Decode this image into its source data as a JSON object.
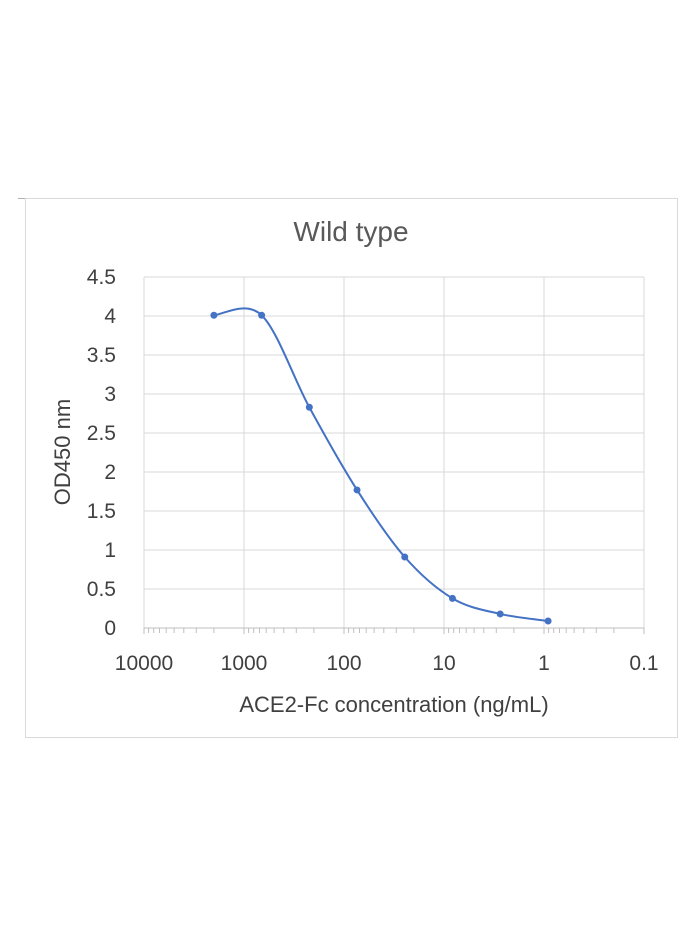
{
  "chart_data": {
    "type": "scatter",
    "title": "Wild type",
    "xlabel": "ACE2-Fc concentration (ng/mL)",
    "ylabel": "OD450 nm",
    "x_scale": "log",
    "x_reversed": true,
    "xlim": [
      10000,
      0.1
    ],
    "ylim": [
      0,
      4.5
    ],
    "x_ticks": [
      "10000",
      "1000",
      "100",
      "10",
      "1",
      "0.1"
    ],
    "y_ticks": [
      "0",
      "0.5",
      "1",
      "1.5",
      "2",
      "2.5",
      "3",
      "3.5",
      "4",
      "4.5"
    ],
    "grid": true,
    "legend": "none",
    "smoothed_line": true,
    "series": [
      {
        "color": "#4472c4",
        "x": [
          2000,
          666.7,
          222.2,
          74.07,
          24.69,
          8.23,
          2.74,
          0.91
        ],
        "y": [
          4.01,
          4.01,
          2.83,
          1.77,
          0.91,
          0.38,
          0.18,
          0.09
        ]
      }
    ]
  }
}
